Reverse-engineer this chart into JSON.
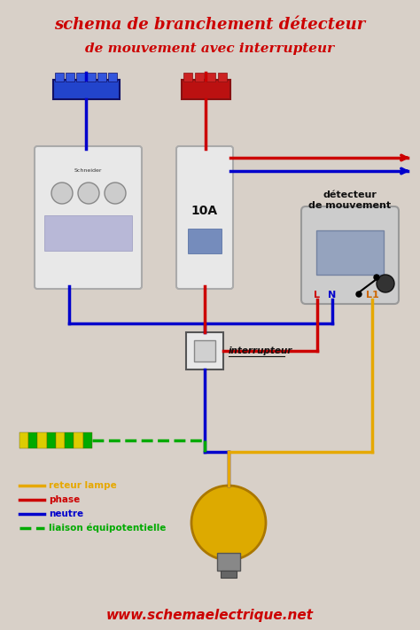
{
  "title_line1": "schema de branchement détecteur",
  "title_line2": "de mouvement avec interrupteur",
  "title_color": "#cc0000",
  "bg_color": "#d8d0c8",
  "website": "www.schemaelectrique.net",
  "legend_items": [
    {
      "label": "reteur lampe",
      "color": "#e6a800",
      "style": "solid"
    },
    {
      "label": "phase",
      "color": "#cc0000",
      "style": "solid"
    },
    {
      "label": "neutre",
      "color": "#0000cc",
      "style": "solid"
    },
    {
      "label": "liaison équipotentielle",
      "color": "#00aa00",
      "style": "dashed"
    }
  ]
}
